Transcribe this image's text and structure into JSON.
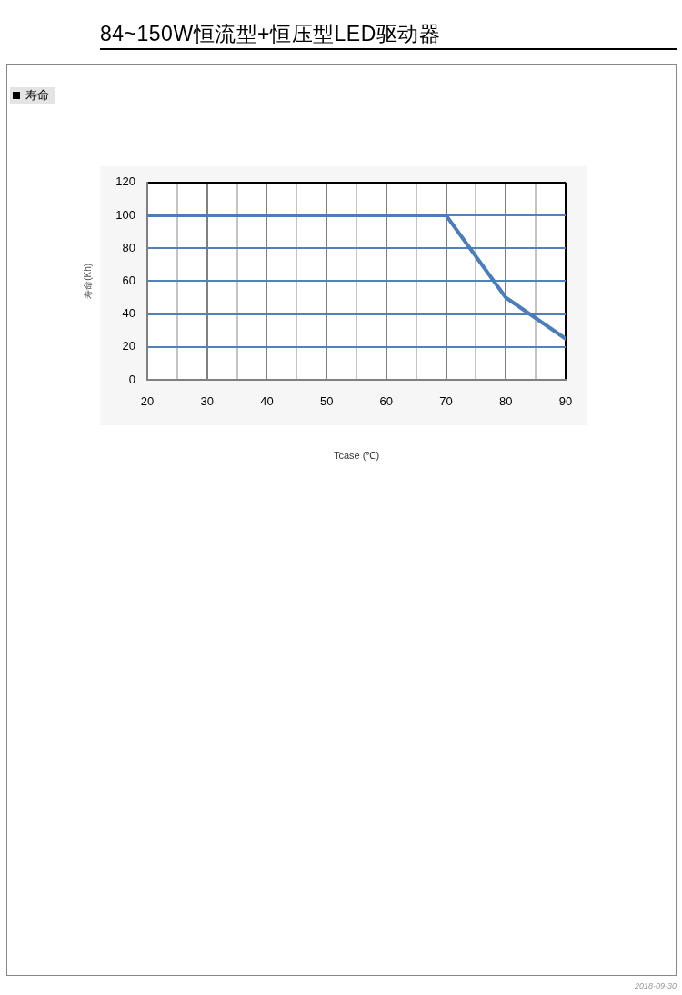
{
  "chart_data": {
    "type": "line",
    "title": "84~150W恒流型+恒压型LED驱动器",
    "subtitle": "寿命",
    "xlabel": "Tcase (℃)",
    "ylabel": "寿命(Kh)",
    "x": [
      20,
      70,
      80,
      90
    ],
    "series": [
      {
        "color": "#4a7ebb",
        "values": [
          100,
          100,
          50,
          25
        ]
      }
    ],
    "xlim": [
      20,
      90
    ],
    "xticks": [
      20,
      {
        "value": 25,
        "label": null
      },
      30,
      {
        "value": 35,
        "label": null
      },
      40,
      {
        "value": 45,
        "label": null
      },
      50,
      {
        "value": 55,
        "label": null
      },
      60,
      {
        "value": 65,
        "label": null
      },
      70,
      {
        "value": 75,
        "label": null
      },
      80,
      {
        "value": 85,
        "label": null
      },
      90
    ],
    "ylim": [
      0,
      120
    ],
    "yticks": [
      0,
      20,
      40,
      60,
      80,
      100,
      120
    ],
    "grid": true,
    "marker": "none",
    "line_style": "solid",
    "annotations": [
      "2018-09-30"
    ]
  }
}
